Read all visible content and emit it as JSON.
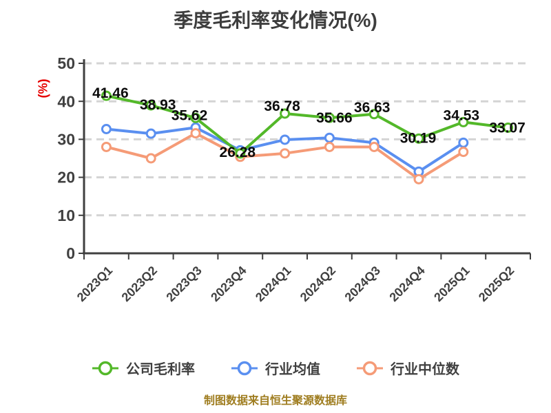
{
  "title": "季度毛利率变化情况(%)",
  "y_axis": {
    "unit_label": "(%)",
    "ticks": [
      0,
      10,
      20,
      30,
      40,
      50
    ]
  },
  "footer": "制图数据来自恒生聚源数据库",
  "colors": {
    "background": "#ffffff",
    "grid": "#d4d4d4",
    "axis": "#3f3f3f",
    "axis_text": "#404040",
    "title_text": "#3d3d3d",
    "data_label": "#0d0d0d",
    "unit_label_red": "#e60000",
    "footer_text": "#9f7d20",
    "legend_text": "#404040",
    "marker_fill": "#ffffff"
  },
  "chart_data": {
    "type": "line",
    "title": "季度毛利率变化情况(%)",
    "categories": [
      "2023Q1",
      "2023Q2",
      "2023Q3",
      "2023Q4",
      "2024Q1",
      "2024Q2",
      "2024Q3",
      "2024Q4",
      "2025Q1",
      "2025Q2"
    ],
    "series": [
      {
        "name": "公司毛利率",
        "color": "#53b829",
        "data_labels": true,
        "values": [
          41.46,
          38.93,
          35.62,
          26.28,
          36.78,
          35.66,
          36.63,
          30.19,
          34.53,
          33.07
        ]
      },
      {
        "name": "行业均值",
        "color": "#5a8ff0",
        "data_labels": false,
        "values": [
          32.7,
          31.5,
          33.1,
          27.1,
          29.9,
          30.4,
          29.1,
          21.5,
          29.1
        ]
      },
      {
        "name": "行业中位数",
        "color": "#f59b77",
        "data_labels": false,
        "values": [
          28.0,
          25.0,
          31.6,
          25.4,
          26.3,
          28.0,
          28.0,
          19.5,
          26.7
        ]
      }
    ],
    "xlabel": "",
    "ylabel": "(%)",
    "ylim": [
      0,
      50
    ],
    "yticks": [
      0,
      10,
      20,
      30,
      40,
      50
    ],
    "grid": "horizontal-dashed",
    "legend_position": "bottom"
  }
}
